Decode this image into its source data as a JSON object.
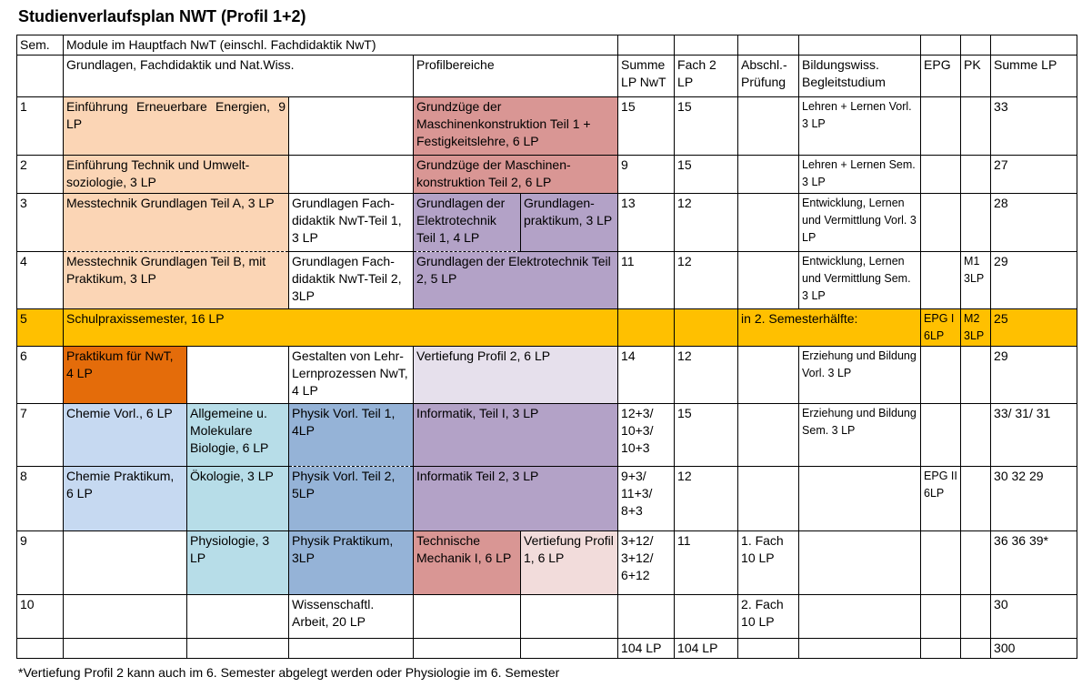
{
  "title": "Studienverlaufsplan NWT (Profil 1+2)",
  "header": {
    "sem": "Sem.",
    "module": "Module im Hauptfach NwT (einschl. Fachdidaktik NwT)",
    "grundlagen": "Grundlagen, Fachdidaktik und Nat.Wiss.",
    "profilbereiche": "Profilbereiche",
    "summe_lp_nwt": "Summe LP NwT",
    "fach2_lp": "Fach 2 LP",
    "abschl": "Abschl.-Prüfung",
    "bildungswiss": "Bildungswiss. Begleitstudium",
    "epg": "EPG",
    "pk": "PK",
    "summe_lp": "Summe LP"
  },
  "rows": {
    "r1": {
      "sem": "1",
      "m1": "Einführung Erneuerbare Energien, 9 LP",
      "p1": "Grundzüge der Maschinenkonstruktion Teil 1 + Festigkeitslehre, 6 LP",
      "sum": "15",
      "f2": "15",
      "bw": "Lehren + Lernen Vorl. 3 LP",
      "total": "33"
    },
    "r2": {
      "sem": "2",
      "m1": "Einführung Technik und Umwelt­soziologie, 3 LP",
      "p1": "Grundzüge der Maschinen­konstruktion Teil 2, 6 LP",
      "sum": "9",
      "f2": "15",
      "bw": "Lehren + Lernen Sem. 3 LP",
      "total": "27"
    },
    "r3": {
      "sem": "3",
      "m1": "Messtechnik Grundlagen Teil A, 3 LP",
      "m2": "Grundlagen Fach­didaktik NwT-Teil 1, 3 LP",
      "p1": "Grundlagen der Elektrotechnik Teil 1, 4 LP",
      "p2": "Grundlagen­praktikum, 3 LP",
      "sum": "13",
      "f2": "12",
      "bw": "Entwicklung, Lernen und Vermittlung Vorl. 3 LP",
      "total": "28"
    },
    "r4": {
      "sem": "4",
      "m1": "Messtechnik Grundlagen Teil B, mit Praktikum, 3 LP",
      "m2": "Grundlagen Fach­didaktik NwT-Teil 2, 3LP",
      "p1": "Grundlagen der Elektrotechnik Teil 2, 5 LP",
      "sum": "11",
      "f2": "12",
      "bw": "Entwicklung, Lernen und Vermittlung Sem. 3 LP",
      "pk": "M1 3LP",
      "total": "29"
    },
    "r5": {
      "sem": "5",
      "m1": "Schulpraxissemester, 16 LP",
      "abschl": "in 2. Semesterhälfte:",
      "epg": "EPG I 6LP",
      "pk": "M2 3LP",
      "total": "25"
    },
    "r6": {
      "sem": "6",
      "m1": "Praktikum für NwT, 4 LP",
      "m3": "Gestalten von Lehr-Lernpro­zessen NwT, 4 LP",
      "p1": "Vertiefung Profil 2, 6 LP",
      "sum": "14",
      "f2": "12",
      "bw": "Erziehung und Bildung Vorl. 3 LP",
      "total": "29"
    },
    "r7": {
      "sem": "7",
      "m1": "Chemie Vorl., 6 LP",
      "m2": "Allgemeine u. Molekulare Biologie, 6 LP",
      "m3": "Physik Vorl. Teil 1, 4LP",
      "p1": "Informatik, Teil I, 3 LP",
      "sum": "12+3/ 10+3/ 10+3",
      "f2": "15",
      "bw": "Erziehung und Bildung Sem. 3 LP",
      "total": "33/ 31/ 31"
    },
    "r8": {
      "sem": "8",
      "m1": "Chemie Praktikum, 6 LP",
      "m2": "Ökologie, 3 LP",
      "m3": "Physik Vorl. Teil 2, 5LP",
      "p1": "Informatik Teil 2, 3 LP",
      "sum": "9+3/ 11+3/ 8+3",
      "f2": "12",
      "epg": "EPG II 6LP",
      "total": "30 32 29"
    },
    "r9": {
      "sem": "9",
      "m2": "Physiologie, 3 LP",
      "m3": "Physik Praktikum, 3LP",
      "p1": "Technische Mechanik I, 6 LP",
      "p2": "Vertiefung Profil 1, 6 LP",
      "sum": "3+12/ 3+12/ 6+12",
      "f2": "11",
      "abschl": "1. Fach 10 LP",
      "total": "36 36 39*"
    },
    "r10": {
      "sem": "10",
      "m3": "Wissenschaftl. Arbeit, 20 LP",
      "abschl": "2. Fach 10 LP",
      "total": "30"
    },
    "sum": {
      "sum": "104 LP",
      "f2": "104 LP",
      "total": "300"
    }
  },
  "footnote": "*Vertiefung Profil 2 kann auch im 6. Semester abgelegt werden oder Physiologie im 6. Semester",
  "colors": {
    "orange_light": "#fbd5b5",
    "rose": "#d99694",
    "purple": "#b3a2c7",
    "lilac_light": "#e6e0ec",
    "gold": "#ffc000",
    "orange_dark": "#e46c0a",
    "blue_light": "#c6d9f1",
    "cyan_light": "#b7dde8",
    "blue_mid": "#95b3d7",
    "pink_light": "#f2dcdb"
  }
}
